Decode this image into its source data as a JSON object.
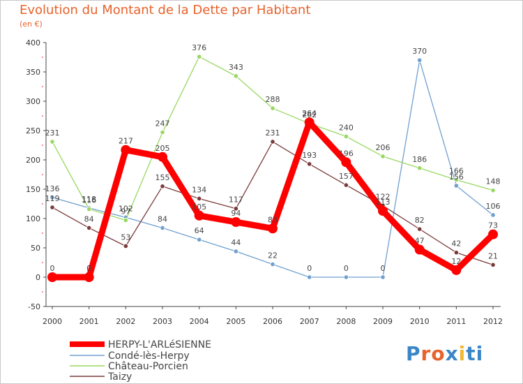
{
  "chart_data": {
    "type": "line",
    "title": "Evolution du Montant de la Dette par Habitant",
    "subtitle": "(en €)",
    "x": [
      "2000",
      "2001",
      "2002",
      "2003",
      "2004",
      "2005",
      "2006",
      "2007",
      "2008",
      "2009",
      "2010",
      "2011",
      "2012"
    ],
    "ylim": [
      -50,
      400
    ],
    "yticks": [
      -50,
      0,
      50,
      100,
      150,
      200,
      250,
      300,
      350,
      400
    ],
    "grid": false,
    "legend": "bottom-left",
    "series": [
      {
        "name": "HERPY-L'ARLéSIENNE",
        "color": "#ff0000",
        "values": [
          0,
          0,
          217,
          205,
          105,
          94,
          83,
          264,
          196,
          113,
          47,
          12,
          73
        ]
      },
      {
        "name": "Condé-lès-Herpy",
        "color": "#6f9fcf",
        "values": [
          136,
          118,
          102,
          84,
          64,
          44,
          22,
          0,
          0,
          0,
          370,
          156,
          106
        ]
      },
      {
        "name": "Château-Porcien",
        "color": "#98d860",
        "values": [
          231,
          116,
          97,
          247,
          376,
          343,
          288,
          262,
          240,
          206,
          186,
          166,
          148
        ]
      },
      {
        "name": "Taizy",
        "color": "#7a3a3a",
        "values": [
          119,
          84,
          53,
          155,
          134,
          117,
          231,
          193,
          157,
          122,
          82,
          42,
          21
        ]
      }
    ]
  },
  "logo": {
    "text": "Proxiti"
  }
}
